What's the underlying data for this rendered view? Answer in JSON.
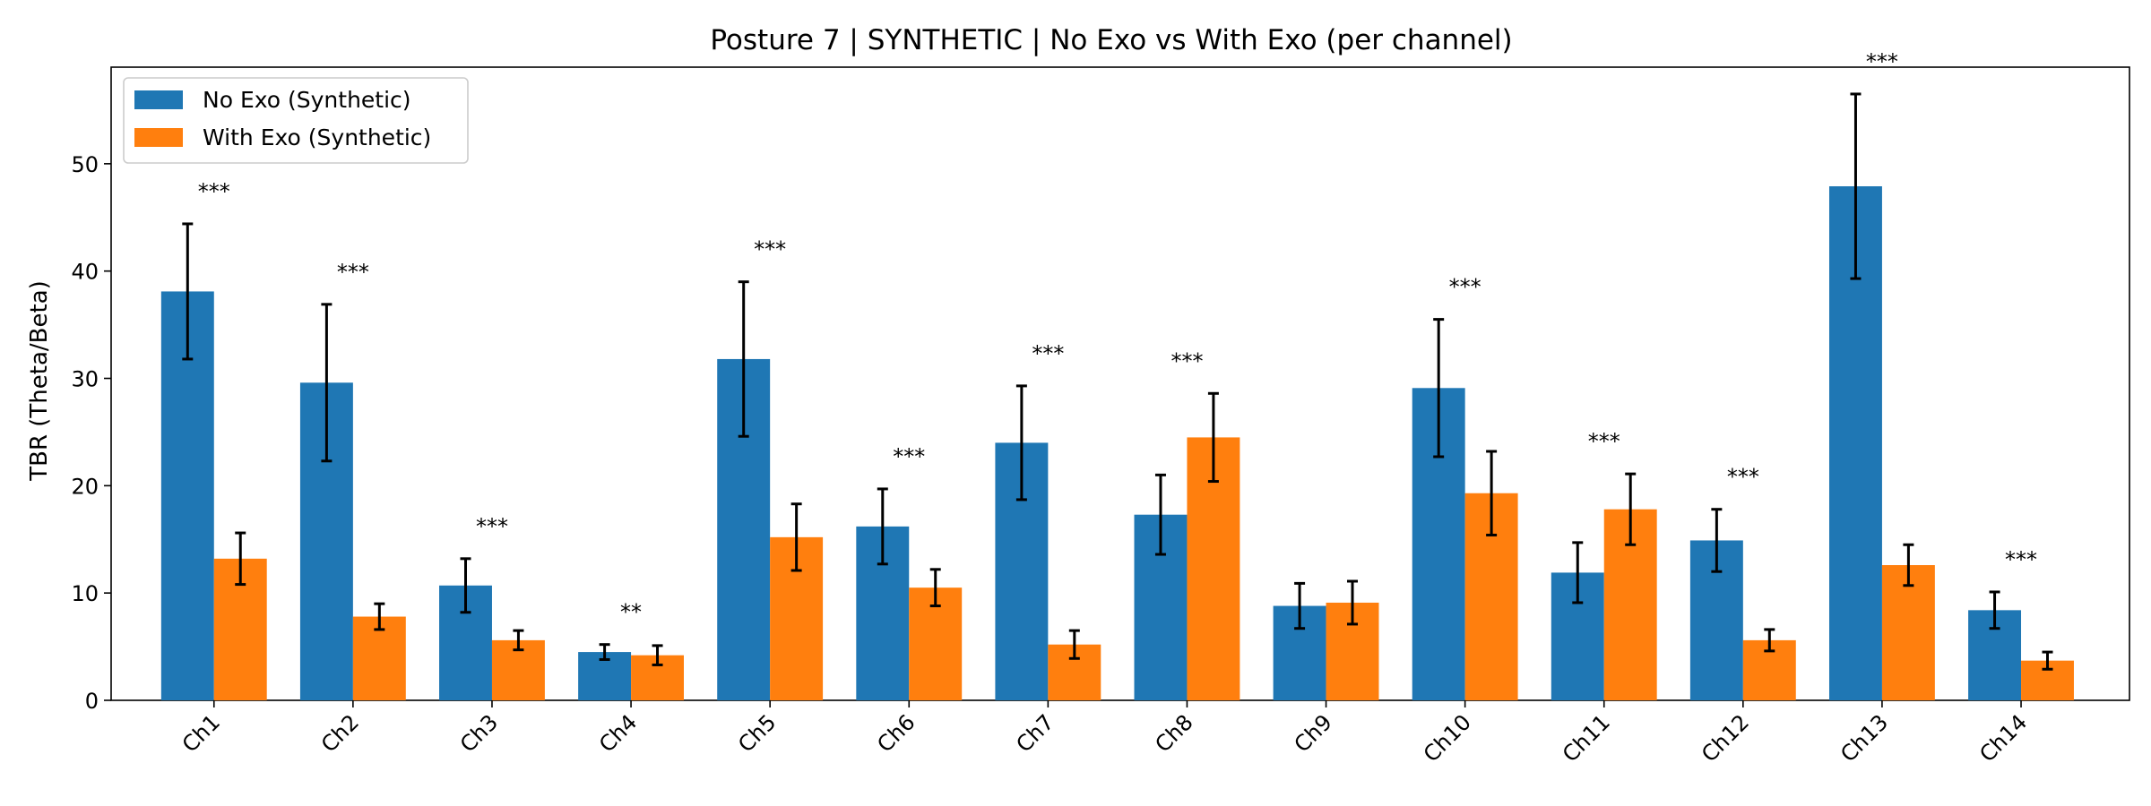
{
  "chart_data": {
    "type": "bar",
    "title": "Posture 7 | SYNTHETIC | No Exo vs With Exo (per channel)",
    "xlabel": "",
    "ylabel": "TBR (Theta/Beta)",
    "ylim": [
      0,
      59
    ],
    "yticks": [
      0,
      10,
      20,
      30,
      40,
      50
    ],
    "grid": false,
    "legend_position": "top-left",
    "categories": [
      "Ch1",
      "Ch2",
      "Ch3",
      "Ch4",
      "Ch5",
      "Ch6",
      "Ch7",
      "Ch8",
      "Ch9",
      "Ch10",
      "Ch11",
      "Ch12",
      "Ch13",
      "Ch14"
    ],
    "series": [
      {
        "name": "No Exo (Synthetic)",
        "color": "#1f77b4",
        "values": [
          38.1,
          29.6,
          10.7,
          4.5,
          31.8,
          16.2,
          24.0,
          17.3,
          8.8,
          29.1,
          11.9,
          14.9,
          47.9,
          8.4
        ],
        "errors": [
          6.3,
          7.3,
          2.5,
          0.7,
          7.2,
          3.5,
          5.3,
          3.7,
          2.1,
          6.4,
          2.8,
          2.9,
          8.6,
          1.7
        ]
      },
      {
        "name": "With Exo (Synthetic)",
        "color": "#ff7f0e",
        "values": [
          13.2,
          7.8,
          5.6,
          4.2,
          15.2,
          10.5,
          5.2,
          24.5,
          9.1,
          19.3,
          17.8,
          5.6,
          12.6,
          3.7
        ],
        "errors": [
          2.4,
          1.2,
          0.9,
          0.9,
          3.1,
          1.7,
          1.3,
          4.1,
          2.0,
          3.9,
          3.3,
          1.0,
          1.9,
          0.8
        ]
      }
    ],
    "annotations": [
      "***",
      "***",
      "***",
      "**",
      "***",
      "***",
      "***",
      "***",
      "",
      "***",
      "***",
      "***",
      "***",
      "***"
    ]
  }
}
